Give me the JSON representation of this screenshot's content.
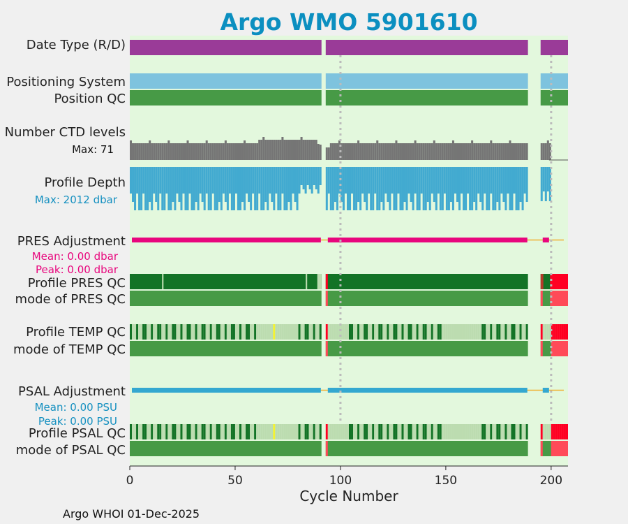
{
  "title": "Argo WMO 5901610",
  "footer": "Argo WHOI 01-Dec-2025",
  "chart_data": {
    "type": "timeline",
    "xlabel": "Cycle Number",
    "xlim": [
      0,
      208
    ],
    "xticks": [
      0,
      50,
      100,
      150,
      200
    ],
    "xtick_labels": [
      "0",
      "50",
      "100",
      "150",
      "200"
    ],
    "dotted_reference_cycles": [
      100,
      200
    ],
    "cycle_segments": [
      [
        0,
        91
      ],
      [
        93,
        189
      ],
      [
        195,
        208
      ]
    ],
    "colors": {
      "background": "#e3f8dd",
      "data_type": "#9a3b98",
      "positioning": "#7ec3de",
      "qc_good": "#479a46",
      "qc_good_dark": "#137326",
      "qc_light": "#bcdcb0",
      "qc_yellow": "#f2f233",
      "qc_bad": "#ff0022",
      "qc_bad_light": "#ff4a58",
      "ctd_levels": "#757575",
      "profile_depth": "#42aad0",
      "pres_adjustment": "#e8067d",
      "psal_adjustment": "#34a8d0",
      "adjustment_line": "#f0b030",
      "title": "#0b8fc0"
    },
    "rows": {
      "data_type": "Date Type (R/D)",
      "positioning_system": "Positioning System",
      "position_qc": "Position QC",
      "ctd_levels": "Number CTD levels",
      "ctd_levels_max": "Max: 71",
      "profile_depth": "Profile Depth",
      "profile_depth_max": "Max: 2012 dbar",
      "pres_adjustment": "PRES Adjustment",
      "pres_mean": "Mean: 0.00 dbar",
      "pres_peak": "Peak: 0.00 dbar",
      "profile_pres_qc": "Profile PRES QC",
      "mode_pres_qc": "mode of PRES QC",
      "profile_temp_qc": "Profile TEMP QC",
      "mode_temp_qc": "mode of TEMP QC",
      "psal_adjustment": "PSAL Adjustment",
      "psal_mean": "Mean: 0.00 PSU",
      "psal_peak": "Peak: 0.00 PSU",
      "profile_psal_qc": "Profile PSAL QC",
      "mode_psal_qc": "mode of PSAL QC"
    }
  }
}
